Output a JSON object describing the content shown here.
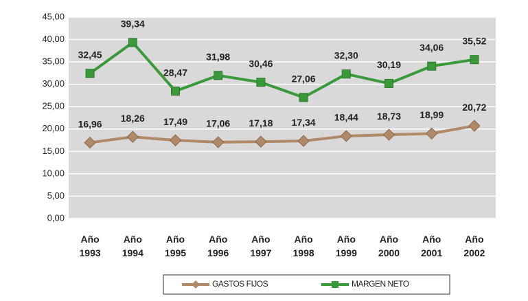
{
  "chart_data": {
    "type": "line",
    "categories": [
      "Año 1993",
      "Año 1994",
      "Año 1995",
      "Año 1996",
      "Año 1997",
      "Año 1998",
      "Año 1999",
      "Año 2000",
      "Año 2001",
      "Año 2002"
    ],
    "series": [
      {
        "name": "GASTOS FIJOS",
        "color": "#b08a68",
        "marker": "diamond",
        "values": [
          16.96,
          18.26,
          17.49,
          17.06,
          17.18,
          17.34,
          18.44,
          18.73,
          18.99,
          20.72
        ],
        "value_labels": [
          "16,96",
          "18,26",
          "17,49",
          "17,06",
          "17,18",
          "17,34",
          "18,44",
          "18,73",
          "18,99",
          "20,72"
        ]
      },
      {
        "name": "MARGEN NETO",
        "color": "#3a9a3a",
        "marker": "square",
        "values": [
          32.45,
          39.34,
          28.47,
          31.98,
          30.46,
          27.06,
          32.3,
          30.19,
          34.06,
          35.52
        ],
        "value_labels": [
          "32,45",
          "39,34",
          "28,47",
          "31,98",
          "30,46",
          "27,06",
          "32,30",
          "30,19",
          "34,06",
          "35,52"
        ]
      }
    ],
    "ylim": [
      0,
      45
    ],
    "yticks": [
      {
        "value": 0,
        "label": "0,00"
      },
      {
        "value": 5,
        "label": "5,00"
      },
      {
        "value": 10,
        "label": "10,00"
      },
      {
        "value": 15,
        "label": "15,00"
      },
      {
        "value": 20,
        "label": "20,00"
      },
      {
        "value": 25,
        "label": "25,00"
      },
      {
        "value": 30,
        "label": "30,00"
      },
      {
        "value": 35,
        "label": "35,00"
      },
      {
        "value": 40,
        "label": "40,00"
      },
      {
        "value": 45,
        "label": "45,00"
      }
    ],
    "grid": true,
    "legend": "bottom"
  }
}
